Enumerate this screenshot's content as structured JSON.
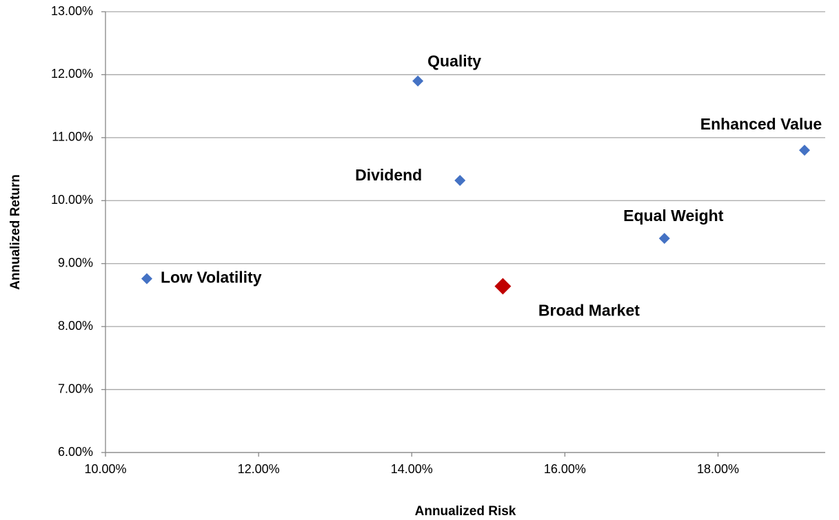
{
  "chart_data": {
    "type": "scatter",
    "x_label": "Annualized Risk",
    "y_label": "Annualized Return",
    "labels": [
      "Quality",
      "Dividend",
      "Enhanced Value",
      "Equal Weight",
      "Low Volatility",
      "Broad Market"
    ],
    "x": [
      14.08,
      14.63,
      19.13,
      17.3,
      10.54,
      15.19
    ],
    "y": [
      11.9,
      10.32,
      10.8,
      9.4,
      8.76,
      8.64
    ],
    "colors": [
      "#4472c4",
      "#4472c4",
      "#4472c4",
      "#4472c4",
      "#4472c4",
      "#c00000"
    ],
    "highlight": 5,
    "xlim": [
      10,
      19.4
    ],
    "ylim": [
      6,
      13
    ],
    "xticks": [
      {
        "value": 10,
        "label": "10.00%"
      },
      {
        "value": 12,
        "label": "12.00%"
      },
      {
        "value": 14,
        "label": "14.00%"
      },
      {
        "value": 16,
        "label": "16.00%"
      },
      {
        "value": 18,
        "label": "18.00%"
      }
    ],
    "yticks": [
      {
        "value": 6,
        "label": "6.00%"
      },
      {
        "value": 7,
        "label": "7.00%"
      },
      {
        "value": 8,
        "label": "8.00%"
      },
      {
        "value": 9,
        "label": "9.00%"
      },
      {
        "value": 10,
        "label": "10.00%"
      },
      {
        "value": 11,
        "label": "11.00%"
      },
      {
        "value": 12,
        "label": "12.00%"
      },
      {
        "value": 13,
        "label": "13.00%"
      }
    ],
    "grid": true
  }
}
